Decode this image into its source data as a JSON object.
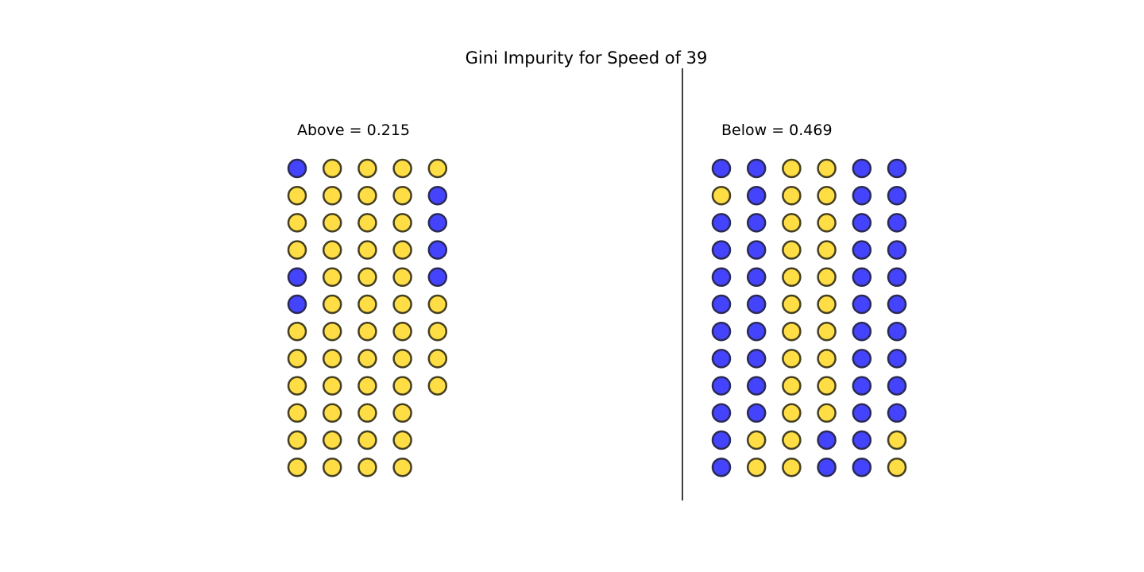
{
  "chart_data": {
    "type": "scatter",
    "title": "Gini Impurity for Speed of 39",
    "colors": {
      "blue": "#4444ff",
      "yellow": "#ffdd44",
      "blue_edge": "#2a2a55",
      "yellow_edge": "#443f22"
    },
    "panels": [
      {
        "name": "Above",
        "label": "Above = 0.215",
        "gini": 0.215,
        "columns": [
          [
            "B",
            "Y",
            "Y",
            "Y",
            "B",
            "B",
            "Y",
            "Y",
            "Y",
            "Y",
            "Y",
            "Y"
          ],
          [
            "Y",
            "Y",
            "Y",
            "Y",
            "Y",
            "Y",
            "Y",
            "Y",
            "Y",
            "Y",
            "Y",
            "Y"
          ],
          [
            "Y",
            "Y",
            "Y",
            "Y",
            "Y",
            "Y",
            "Y",
            "Y",
            "Y",
            "Y",
            "Y",
            "Y"
          ],
          [
            "Y",
            "Y",
            "Y",
            "Y",
            "Y",
            "Y",
            "Y",
            "Y",
            "Y",
            "Y",
            "Y",
            "Y"
          ],
          [
            "Y",
            "B",
            "B",
            "B",
            "B",
            "Y",
            "Y",
            "Y",
            "Y"
          ]
        ]
      },
      {
        "name": "Below",
        "label": "Below = 0.469",
        "gini": 0.469,
        "columns": [
          [
            "B",
            "Y",
            "B",
            "B",
            "B",
            "B",
            "B",
            "B",
            "B",
            "B",
            "B",
            "B"
          ],
          [
            "B",
            "B",
            "B",
            "B",
            "B",
            "B",
            "B",
            "B",
            "B",
            "B",
            "Y",
            "Y"
          ],
          [
            "Y",
            "Y",
            "Y",
            "Y",
            "Y",
            "Y",
            "Y",
            "Y",
            "Y",
            "Y",
            "Y",
            "Y"
          ],
          [
            "Y",
            "Y",
            "Y",
            "Y",
            "Y",
            "Y",
            "Y",
            "Y",
            "Y",
            "Y",
            "B",
            "B"
          ],
          [
            "B",
            "B",
            "B",
            "B",
            "B",
            "B",
            "B",
            "B",
            "B",
            "B",
            "B",
            "B"
          ],
          [
            "B",
            "B",
            "B",
            "B",
            "B",
            "B",
            "B",
            "B",
            "B",
            "B",
            "Y",
            "Y"
          ]
        ]
      }
    ]
  }
}
